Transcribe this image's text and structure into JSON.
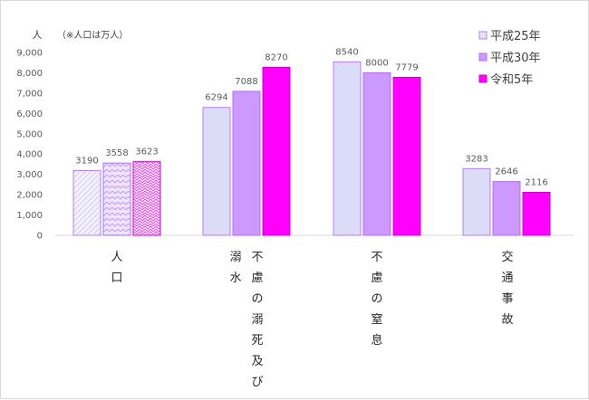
{
  "chart_data": {
    "type": "bar",
    "yunit": "人",
    "note": "（※人口は万人）",
    "ylim": [
      0,
      9000
    ],
    "yticks": [
      "0",
      "1,000",
      "2,000",
      "3,000",
      "4,000",
      "5,000",
      "6,000",
      "7,000",
      "8,000",
      "9,000"
    ],
    "categories": [
      {
        "name": "人口",
        "lines": [
          "人口"
        ]
      },
      {
        "name": "不慮の溺死及び溺水",
        "lines": [
          "不慮の溺死及び",
          "溺水"
        ]
      },
      {
        "name": "不慮の窒息",
        "lines": [
          "不慮の窒息"
        ]
      },
      {
        "name": "交通事故",
        "lines": [
          "交通事故"
        ]
      }
    ],
    "series": [
      {
        "name": "平成25年",
        "color": "#dcdcf8",
        "border": "#b67cf0",
        "values": [
          3190,
          6294,
          8540,
          3283
        ]
      },
      {
        "name": "平成30年",
        "color": "#cc99ff",
        "border": "#b36bf5",
        "values": [
          3558,
          7088,
          8000,
          2646
        ]
      },
      {
        "name": "令和5年",
        "color": "#ff00ff",
        "border": "#cc00cc",
        "values": [
          3623,
          8270,
          7779,
          2116
        ]
      }
    ],
    "grid": false,
    "legend": "top-right"
  }
}
